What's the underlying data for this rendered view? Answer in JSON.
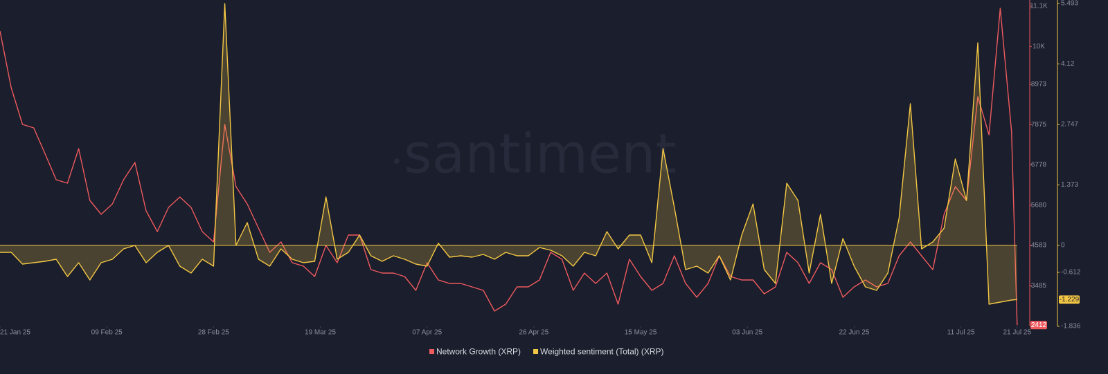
{
  "chart_data": {
    "type": "line",
    "watermark": "santiment",
    "x": [
      "2025-01-21",
      "2025-01-23",
      "2025-01-25",
      "2025-01-27",
      "2025-01-29",
      "2025-01-31",
      "2025-02-02",
      "2025-02-04",
      "2025-02-06",
      "2025-02-08",
      "2025-02-10",
      "2025-02-12",
      "2025-02-14",
      "2025-02-16",
      "2025-02-18",
      "2025-02-20",
      "2025-02-22",
      "2025-02-24",
      "2025-02-26",
      "2025-02-28",
      "2025-03-02",
      "2025-03-04",
      "2025-03-06",
      "2025-03-08",
      "2025-03-10",
      "2025-03-12",
      "2025-03-14",
      "2025-03-16",
      "2025-03-18",
      "2025-03-20",
      "2025-03-22",
      "2025-03-24",
      "2025-03-26",
      "2025-03-28",
      "2025-03-30",
      "2025-04-01",
      "2025-04-03",
      "2025-04-05",
      "2025-04-07",
      "2025-04-09",
      "2025-04-11",
      "2025-04-13",
      "2025-04-15",
      "2025-04-17",
      "2025-04-19",
      "2025-04-21",
      "2025-04-23",
      "2025-04-25",
      "2025-04-27",
      "2025-04-29",
      "2025-05-01",
      "2025-05-03",
      "2025-05-05",
      "2025-05-07",
      "2025-05-09",
      "2025-05-11",
      "2025-05-13",
      "2025-05-15",
      "2025-05-17",
      "2025-05-19",
      "2025-05-21",
      "2025-05-23",
      "2025-05-25",
      "2025-05-27",
      "2025-05-29",
      "2025-05-31",
      "2025-06-02",
      "2025-06-04",
      "2025-06-06",
      "2025-06-08",
      "2025-06-10",
      "2025-06-12",
      "2025-06-14",
      "2025-06-16",
      "2025-06-18",
      "2025-06-20",
      "2025-06-22",
      "2025-06-24",
      "2025-06-26",
      "2025-06-28",
      "2025-06-30",
      "2025-07-02",
      "2025-07-04",
      "2025-07-06",
      "2025-07-08",
      "2025-07-10",
      "2025-07-12",
      "2025-07-14",
      "2025-07-16",
      "2025-07-18",
      "2025-07-20",
      "2025-07-21"
    ],
    "xlim": [
      "2025-01-21",
      "2025-07-23"
    ],
    "xticks": [
      {
        "value": "2025-01-21",
        "label": "21 Jan 25"
      },
      {
        "value": "2025-02-09",
        "label": "09 Feb 25"
      },
      {
        "value": "2025-02-28",
        "label": "28 Feb 25"
      },
      {
        "value": "2025-03-19",
        "label": "19 Mar 25"
      },
      {
        "value": "2025-04-07",
        "label": "07 Apr 25"
      },
      {
        "value": "2025-04-26",
        "label": "26 Apr 25"
      },
      {
        "value": "2025-05-15",
        "label": "15 May 25"
      },
      {
        "value": "2025-06-03",
        "label": "03 Jun 25"
      },
      {
        "value": "2025-06-22",
        "label": "22 Jun 25"
      },
      {
        "value": "2025-07-11",
        "label": "11 Jul 25"
      },
      {
        "value": "2025-07-21",
        "label": "21 Jul 25"
      }
    ],
    "ylim": [
      2380,
      11268
    ],
    "yticks": [
      {
        "value": 11100,
        "label": "11.1K"
      },
      {
        "value": 10000,
        "label": "10K"
      },
      8973,
      7875,
      6778,
      5680,
      4583,
      3485
    ],
    "y2lim": [
      -1.836,
      5.572
    ],
    "y2ticks": [
      5.493,
      4.12,
      2.747,
      1.373,
      0,
      -0.612,
      -1.836
    ],
    "grid": false,
    "series": [
      {
        "name": "Network Growth (XRP)",
        "color": "#ef5a5f",
        "values": [
          10420,
          8876,
          7878,
          7784,
          7087,
          6372,
          6278,
          7219,
          5807,
          5430,
          5713,
          6372,
          6843,
          5525,
          4960,
          5619,
          5901,
          5619,
          4960,
          4677,
          7878,
          6184,
          5713,
          5054,
          4395,
          4677,
          4112,
          4018,
          3736,
          4583,
          4112,
          4865,
          4865,
          3924,
          3830,
          3830,
          3736,
          3359,
          4112,
          3641,
          3547,
          3547,
          3453,
          3359,
          2794,
          2982,
          3453,
          3453,
          3641,
          4395,
          4206,
          3359,
          3830,
          3547,
          3830,
          2982,
          4206,
          3736,
          3359,
          3547,
          4301,
          3547,
          3171,
          3547,
          4301,
          3736,
          3641,
          3641,
          3265,
          3453,
          4395,
          4112,
          3547,
          4112,
          3924,
          3171,
          3453,
          3641,
          3453,
          3547,
          4301,
          4677,
          4301,
          3924,
          5430,
          6184,
          5807,
          8631,
          7596,
          11042,
          7690,
          2412
        ]
      },
      {
        "name": "Weighted sentiment (Total) (XRP)",
        "color": "#f3c744",
        "axis": "y2",
        "values": [
          -0.157,
          -0.157,
          -0.424,
          -0.392,
          -0.361,
          -0.314,
          -0.706,
          -0.392,
          -0.785,
          -0.392,
          -0.314,
          -0.078,
          0,
          -0.392,
          -0.157,
          0,
          -0.471,
          -0.628,
          -0.314,
          -0.471,
          5.49,
          0,
          0.518,
          -0.314,
          -0.471,
          -0.078,
          -0.314,
          -0.392,
          -0.361,
          1.099,
          -0.314,
          -0.157,
          0.235,
          -0.235,
          -0.361,
          -0.235,
          -0.314,
          -0.424,
          -0.471,
          0.05,
          -0.267,
          -0.235,
          -0.267,
          -0.204,
          -0.314,
          -0.157,
          -0.235,
          -0.235,
          -0.047,
          -0.11,
          -0.235,
          -0.471,
          -0.157,
          -0.235,
          0.314,
          -0.078,
          0.235,
          0.235,
          -0.392,
          2.197,
          0.863,
          -0.549,
          -0.471,
          -0.628,
          -0.235,
          -0.785,
          0.235,
          0.942,
          -0.549,
          -0.863,
          1.413,
          1.02,
          -0.628,
          0.706,
          -0.863,
          0.157,
          -0.471,
          -0.942,
          -1.02,
          -0.628,
          0.628,
          3.217,
          -0.078,
          0.078,
          0.392,
          1.962,
          1.02,
          4.599,
          -1.334,
          -1.287,
          -1.24,
          -1.229
        ]
      }
    ]
  }
}
